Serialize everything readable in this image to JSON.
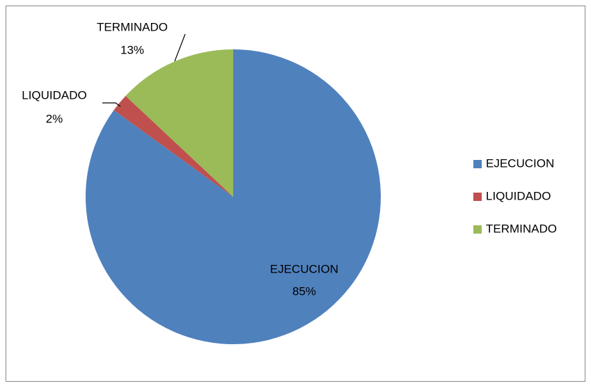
{
  "chart_data": {
    "type": "pie",
    "categories": [
      "EJECUCION",
      "LIQUIDADO",
      "TERMINADO"
    ],
    "values": [
      85,
      2,
      13
    ],
    "value_labels": [
      "85%",
      "2%",
      "13%"
    ],
    "colors": [
      "#4f81bd",
      "#c0504d",
      "#9bbb59"
    ],
    "legend": "right"
  }
}
